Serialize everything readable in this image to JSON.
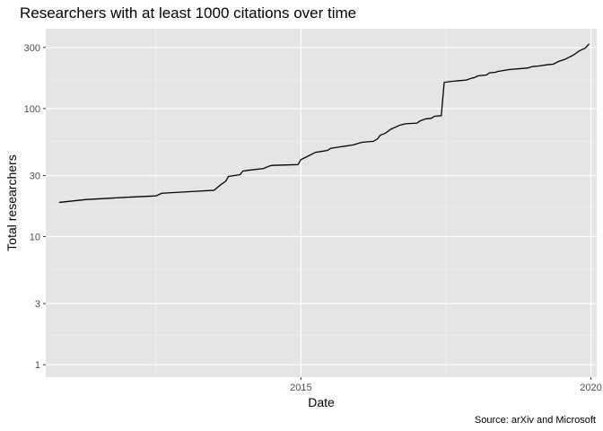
{
  "chart_data": {
    "type": "line",
    "title": "Researchers with at least 1000 citations over time",
    "xlabel": "Date",
    "ylabel": "Total researchers",
    "caption": "Source: arXiv and Microsoft",
    "y_scale": "log10",
    "xlim": [
      2010.6,
      2020.1
    ],
    "ylim": [
      0.8,
      420
    ],
    "x_ticks": [
      {
        "value": 2015,
        "label": "2015"
      },
      {
        "value": 2020,
        "label": "2020"
      }
    ],
    "x_minor_ticks": [
      2012.5,
      2017.5
    ],
    "y_ticks": [
      {
        "value": 1,
        "label": "1"
      },
      {
        "value": 3,
        "label": "3"
      },
      {
        "value": 10,
        "label": "10"
      },
      {
        "value": 30,
        "label": "30"
      },
      {
        "value": 100,
        "label": "100"
      },
      {
        "value": 300,
        "label": "300"
      }
    ],
    "y_minor_ticks": [
      1.7,
      5.5,
      17,
      55,
      170
    ],
    "series": [
      {
        "name": "Total researchers",
        "color": "#000000",
        "x": [
          2010.83,
          2011.3,
          2012.0,
          2012.5,
          2012.6,
          2013.2,
          2013.5,
          2013.62,
          2013.7,
          2013.75,
          2013.95,
          2014.0,
          2014.1,
          2014.35,
          2014.45,
          2014.5,
          2014.95,
          2015.0,
          2015.1,
          2015.25,
          2015.45,
          2015.52,
          2015.9,
          2016.05,
          2016.25,
          2016.32,
          2016.37,
          2016.45,
          2016.55,
          2016.7,
          2016.8,
          2017.0,
          2017.05,
          2017.15,
          2017.25,
          2017.3,
          2017.42,
          2017.47,
          2017.6,
          2017.85,
          2017.95,
          2018.0,
          2018.05,
          2018.2,
          2018.25,
          2018.35,
          2018.4,
          2018.6,
          2018.9,
          2019.0,
          2019.1,
          2019.25,
          2019.35,
          2019.45,
          2019.55,
          2019.7,
          2019.8,
          2019.9,
          2019.97
        ],
        "values": [
          18.5,
          19.5,
          20.3,
          20.8,
          21.8,
          22.6,
          23.0,
          25.5,
          27.0,
          29.5,
          30.5,
          32.5,
          33.0,
          34.0,
          35.5,
          36.0,
          36.5,
          40.0,
          42.0,
          45.5,
          47.0,
          49.0,
          52.0,
          54.5,
          55.5,
          58.0,
          62.0,
          64.0,
          69.0,
          74.0,
          76.0,
          77.0,
          80.0,
          83.0,
          84.0,
          87.0,
          88.0,
          160.0,
          163.0,
          167.0,
          173.0,
          175.0,
          180.0,
          183.0,
          190.0,
          192.0,
          195.0,
          202.0,
          207.0,
          213.0,
          215.0,
          220.0,
          222.0,
          234.0,
          242.0,
          262.0,
          282.0,
          296.0,
          320.0
        ]
      }
    ],
    "grid": true,
    "legend": "none"
  }
}
